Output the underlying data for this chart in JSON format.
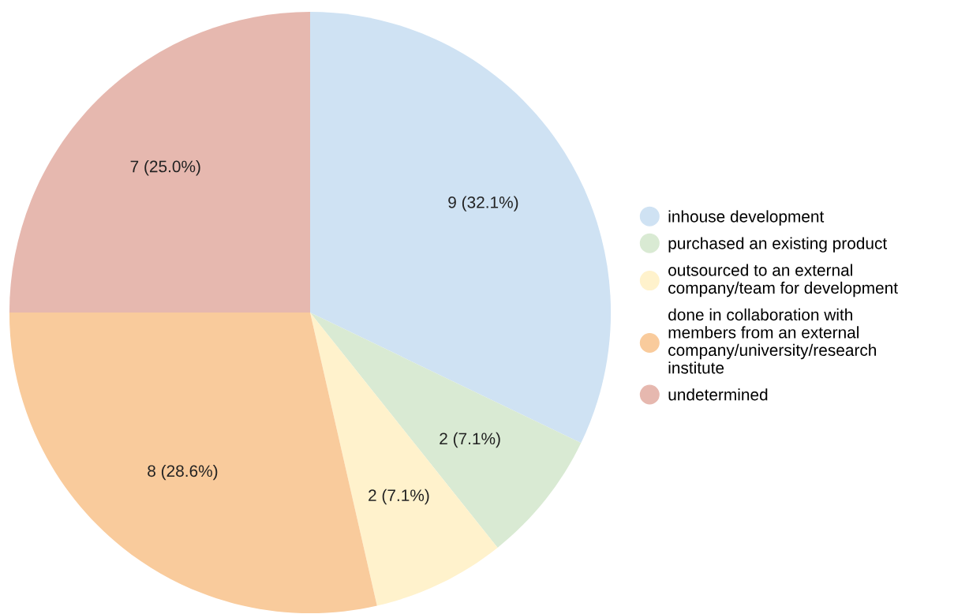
{
  "chart_data": {
    "type": "pie",
    "categories": [
      "inhouse development",
      "purchased an existing product",
      "outsourced to an external company/team for development",
      "done in collaboration with members from an external company/university/research institute",
      "undetermined"
    ],
    "values": [
      9,
      2,
      2,
      8,
      7
    ],
    "value_labels": [
      "9 (32.1%)",
      "2 (7.1%)",
      "2 (7.1%)",
      "8 (28.6%)",
      "7 (25.0%)"
    ],
    "colors": [
      "#cfe2f3",
      "#d9ead3",
      "#fff2cc",
      "#f9cb9c",
      "#e6b8af"
    ],
    "legend": "right"
  }
}
